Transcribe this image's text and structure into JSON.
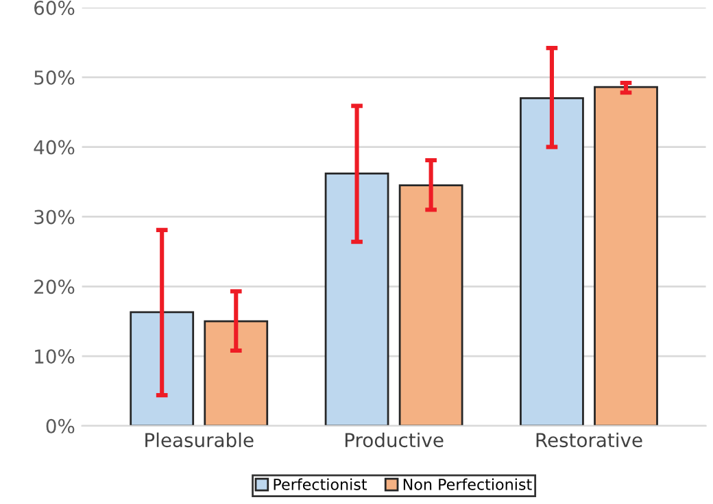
{
  "chart_data": {
    "type": "bar",
    "categories": [
      "Pleasurable",
      "Productive",
      "Restorative"
    ],
    "series": [
      {
        "name": "Perfectionist",
        "color": "#bdd7ee",
        "values": [
          16.3,
          36.2,
          47.0
        ],
        "errors": [
          [
            4.4,
            28.1
          ],
          [
            26.4,
            45.9
          ],
          [
            40.0,
            54.2
          ]
        ]
      },
      {
        "name": "Non Perfectionist",
        "color": "#f4b183",
        "values": [
          15.0,
          34.5,
          48.6
        ],
        "errors": [
          [
            10.8,
            19.3
          ],
          [
            31.0,
            38.1
          ],
          [
            47.8,
            49.2
          ]
        ]
      }
    ],
    "ylim": [
      0,
      60
    ],
    "yticks": [
      {
        "value": 0,
        "label": "0%"
      },
      {
        "value": 10,
        "label": "10%"
      },
      {
        "value": 20,
        "label": "20%"
      },
      {
        "value": 30,
        "label": "30%"
      },
      {
        "value": 40,
        "label": "40%"
      },
      {
        "value": 50,
        "label": "50%"
      },
      {
        "value": 60,
        "label": "60%"
      }
    ],
    "grid": "y",
    "legend": "bottom"
  }
}
